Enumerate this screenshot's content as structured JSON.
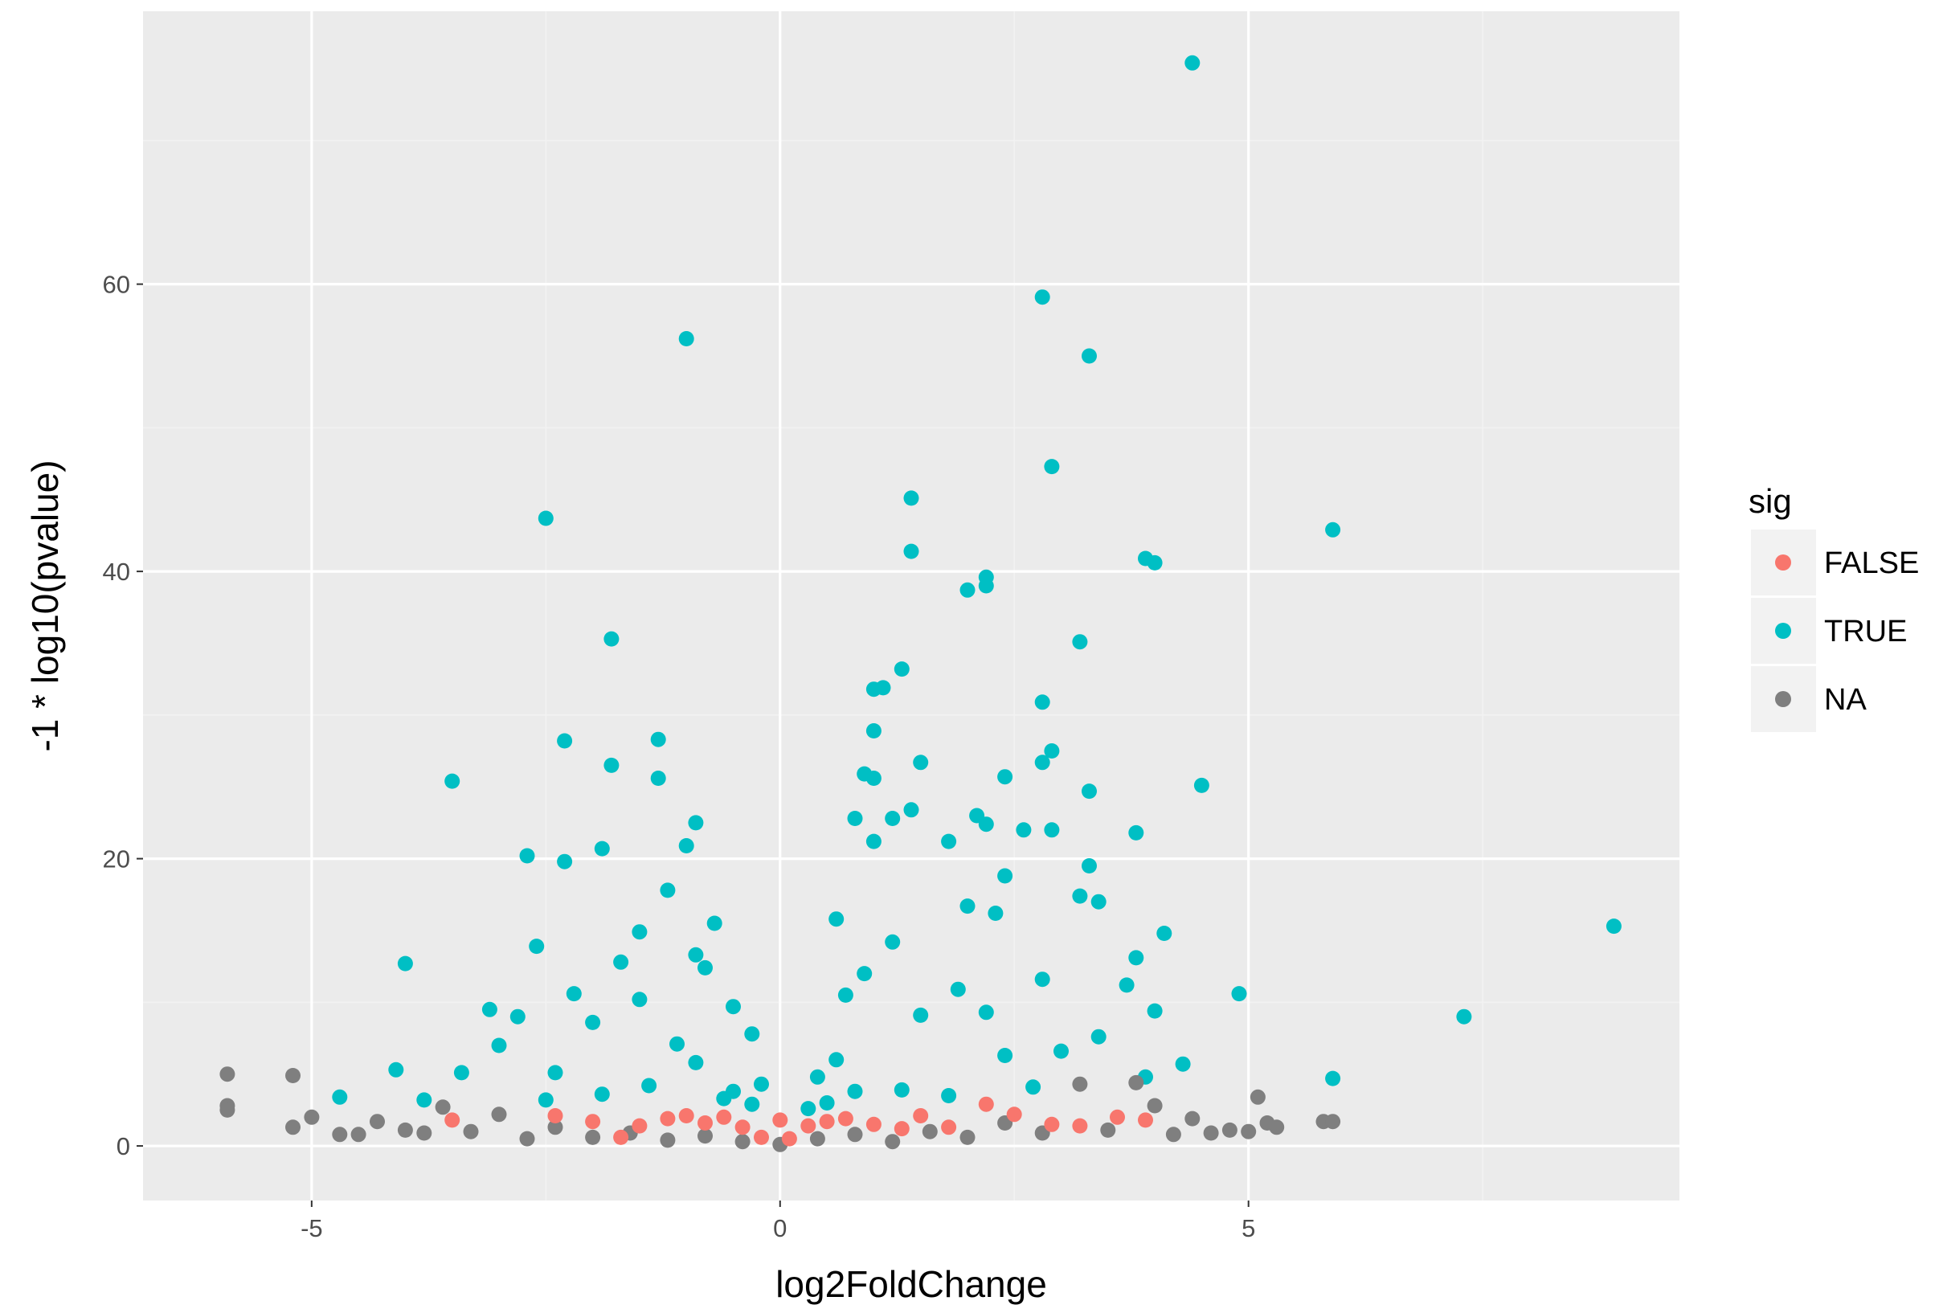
{
  "chart_data": {
    "type": "scatter",
    "title": "",
    "xlabel": "log2FoldChange",
    "ylabel": "-1 * log10(pvalue)",
    "xlim": [
      -6.8,
      9.6
    ],
    "ylim": [
      -3.8,
      79
    ],
    "x_ticks": [
      -5,
      0,
      5
    ],
    "x_tick_labels": [
      "-5",
      "0",
      "5"
    ],
    "y_ticks": [
      0,
      20,
      40,
      60
    ],
    "y_tick_labels": [
      "0",
      "20",
      "40",
      "60"
    ],
    "grid": true,
    "legend": {
      "title": "sig",
      "position": "right",
      "entries": [
        {
          "label": "FALSE",
          "color": "#F8766D"
        },
        {
          "label": "TRUE",
          "color": "#00BFC4"
        },
        {
          "label": "NA",
          "color": "#7F7F7F"
        }
      ]
    },
    "colors": {
      "FALSE": "#F8766D",
      "TRUE": "#00BFC4",
      "NA": "#7F7F7F",
      "panel_background": "#EBEBEB",
      "grid_major": "#FFFFFF",
      "grid_minor": "#F2F2F2"
    },
    "series": [
      {
        "name": "TRUE",
        "points": [
          [
            4.4,
            75.4
          ],
          [
            2.8,
            59.1
          ],
          [
            -1.0,
            56.2
          ],
          [
            3.3,
            55.0
          ],
          [
            2.9,
            47.3
          ],
          [
            1.4,
            45.1
          ],
          [
            -2.5,
            43.7
          ],
          [
            5.9,
            42.9
          ],
          [
            1.4,
            41.4
          ],
          [
            3.9,
            40.9
          ],
          [
            4.0,
            40.6
          ],
          [
            2.2,
            39.6
          ],
          [
            2.2,
            39.0
          ],
          [
            2.0,
            38.7
          ],
          [
            -1.8,
            35.3
          ],
          [
            3.2,
            35.1
          ],
          [
            1.3,
            33.2
          ],
          [
            1.0,
            31.8
          ],
          [
            1.1,
            31.9
          ],
          [
            2.8,
            30.9
          ],
          [
            1.0,
            28.9
          ],
          [
            -2.3,
            28.2
          ],
          [
            -1.3,
            28.3
          ],
          [
            2.9,
            27.5
          ],
          [
            2.8,
            26.7
          ],
          [
            1.5,
            26.7
          ],
          [
            -1.8,
            26.5
          ],
          [
            0.9,
            25.9
          ],
          [
            1.0,
            25.6
          ],
          [
            2.4,
            25.7
          ],
          [
            -1.3,
            25.6
          ],
          [
            -3.5,
            25.4
          ],
          [
            4.5,
            25.1
          ],
          [
            3.3,
            24.7
          ],
          [
            1.4,
            23.4
          ],
          [
            2.1,
            23.0
          ],
          [
            0.8,
            22.8
          ],
          [
            1.2,
            22.8
          ],
          [
            -0.9,
            22.5
          ],
          [
            2.2,
            22.4
          ],
          [
            2.6,
            22.0
          ],
          [
            2.9,
            22.0
          ],
          [
            3.8,
            21.8
          ],
          [
            1.0,
            21.2
          ],
          [
            -1.9,
            20.7
          ],
          [
            1.8,
            21.2
          ],
          [
            -1.0,
            20.9
          ],
          [
            -2.7,
            20.2
          ],
          [
            -2.3,
            19.8
          ],
          [
            3.3,
            19.5
          ],
          [
            2.4,
            18.8
          ],
          [
            -1.2,
            17.8
          ],
          [
            3.2,
            17.4
          ],
          [
            3.4,
            17.0
          ],
          [
            2.0,
            16.7
          ],
          [
            2.3,
            16.2
          ],
          [
            -0.7,
            15.5
          ],
          [
            0.6,
            15.8
          ],
          [
            -1.5,
            14.9
          ],
          [
            4.1,
            14.8
          ],
          [
            8.9,
            15.3
          ],
          [
            1.2,
            14.2
          ],
          [
            -2.6,
            13.9
          ],
          [
            -0.9,
            13.3
          ],
          [
            3.8,
            13.1
          ],
          [
            -1.7,
            12.8
          ],
          [
            -4.0,
            12.7
          ],
          [
            -0.8,
            12.4
          ],
          [
            0.9,
            12.0
          ],
          [
            2.8,
            11.6
          ],
          [
            3.7,
            11.2
          ],
          [
            -2.2,
            10.6
          ],
          [
            4.9,
            10.6
          ],
          [
            1.9,
            10.9
          ],
          [
            0.7,
            10.5
          ],
          [
            -1.5,
            10.2
          ],
          [
            -3.1,
            9.5
          ],
          [
            2.2,
            9.3
          ],
          [
            4.0,
            9.4
          ],
          [
            -2.8,
            9.0
          ],
          [
            7.3,
            9.0
          ],
          [
            -0.5,
            9.7
          ],
          [
            1.5,
            9.1
          ],
          [
            -2.0,
            8.6
          ],
          [
            3.4,
            7.6
          ],
          [
            -0.3,
            7.8
          ],
          [
            -3.0,
            7.0
          ],
          [
            3.0,
            6.6
          ],
          [
            -1.1,
            7.1
          ],
          [
            2.4,
            6.3
          ],
          [
            0.6,
            6.0
          ],
          [
            -0.9,
            5.8
          ],
          [
            4.3,
            5.7
          ],
          [
            -4.1,
            5.3
          ],
          [
            -3.4,
            5.1
          ],
          [
            -2.4,
            5.1
          ],
          [
            3.9,
            4.8
          ],
          [
            5.9,
            4.7
          ],
          [
            0.4,
            4.8
          ],
          [
            -0.2,
            4.3
          ],
          [
            2.7,
            4.1
          ],
          [
            -1.4,
            4.2
          ],
          [
            0.8,
            3.8
          ],
          [
            -4.7,
            3.4
          ],
          [
            -3.8,
            3.2
          ],
          [
            -0.6,
            3.3
          ],
          [
            1.8,
            3.5
          ],
          [
            -1.9,
            3.6
          ],
          [
            0.5,
            3.0
          ],
          [
            -0.5,
            3.8
          ],
          [
            0.3,
            2.6
          ],
          [
            -0.3,
            2.9
          ],
          [
            1.3,
            3.9
          ],
          [
            -2.5,
            3.2
          ]
        ]
      },
      {
        "name": "NA",
        "points": [
          [
            -5.9,
            5.0
          ],
          [
            -5.9,
            2.8
          ],
          [
            -5.9,
            2.5
          ],
          [
            -5.2,
            4.9
          ],
          [
            -5.2,
            1.3
          ],
          [
            -5.0,
            2.0
          ],
          [
            -4.7,
            0.8
          ],
          [
            -4.5,
            0.8
          ],
          [
            -4.3,
            1.7
          ],
          [
            -4.0,
            1.1
          ],
          [
            -3.8,
            0.9
          ],
          [
            -3.6,
            2.7
          ],
          [
            -3.3,
            1.0
          ],
          [
            -3.0,
            2.2
          ],
          [
            -2.7,
            0.5
          ],
          [
            -2.4,
            1.3
          ],
          [
            -2.0,
            0.6
          ],
          [
            -1.6,
            0.9
          ],
          [
            -1.2,
            0.4
          ],
          [
            -0.8,
            0.7
          ],
          [
            -0.4,
            0.3
          ],
          [
            0.0,
            0.1
          ],
          [
            0.4,
            0.5
          ],
          [
            0.8,
            0.8
          ],
          [
            1.2,
            0.3
          ],
          [
            1.6,
            1.0
          ],
          [
            2.0,
            0.6
          ],
          [
            2.4,
            1.6
          ],
          [
            2.8,
            0.9
          ],
          [
            3.2,
            4.3
          ],
          [
            3.5,
            1.1
          ],
          [
            3.8,
            4.4
          ],
          [
            4.0,
            2.8
          ],
          [
            4.2,
            0.8
          ],
          [
            4.4,
            1.9
          ],
          [
            4.6,
            0.9
          ],
          [
            4.8,
            1.1
          ],
          [
            5.0,
            1.0
          ],
          [
            5.1,
            3.4
          ],
          [
            5.2,
            1.6
          ],
          [
            5.3,
            1.3
          ],
          [
            5.8,
            1.7
          ],
          [
            5.9,
            1.7
          ]
        ]
      },
      {
        "name": "FALSE",
        "points": [
          [
            -3.5,
            1.8
          ],
          [
            -2.4,
            2.1
          ],
          [
            -2.0,
            1.7
          ],
          [
            -1.7,
            0.6
          ],
          [
            -1.5,
            1.4
          ],
          [
            -1.2,
            1.9
          ],
          [
            -1.0,
            2.1
          ],
          [
            -0.8,
            1.6
          ],
          [
            -0.6,
            2.0
          ],
          [
            -0.4,
            1.3
          ],
          [
            -0.2,
            0.6
          ],
          [
            0.0,
            1.8
          ],
          [
            0.1,
            0.5
          ],
          [
            0.3,
            1.4
          ],
          [
            0.5,
            1.7
          ],
          [
            0.7,
            1.9
          ],
          [
            1.0,
            1.5
          ],
          [
            1.3,
            1.2
          ],
          [
            1.5,
            2.1
          ],
          [
            1.8,
            1.3
          ],
          [
            2.2,
            2.9
          ],
          [
            2.5,
            2.2
          ],
          [
            2.9,
            1.5
          ],
          [
            3.2,
            1.4
          ],
          [
            3.6,
            2.0
          ],
          [
            3.9,
            1.8
          ]
        ]
      }
    ]
  }
}
